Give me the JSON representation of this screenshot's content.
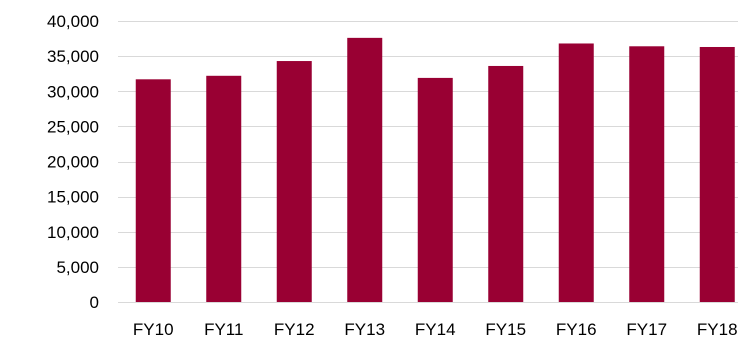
{
  "chart_data": {
    "type": "bar",
    "categories": [
      "FY10",
      "FY11",
      "FY12",
      "FY13",
      "FY14",
      "FY15",
      "FY16",
      "FY17",
      "FY18"
    ],
    "series": [
      {
        "values": [
          31700,
          32200,
          34300,
          37600,
          31900,
          33600,
          36800,
          36400,
          36300
        ],
        "color": "#990033"
      }
    ],
    "title": "",
    "xlabel": "",
    "ylabel": "",
    "ylim": [
      0,
      40000
    ],
    "y_ticks": [
      0,
      5000,
      10000,
      15000,
      20000,
      25000,
      30000,
      35000,
      40000
    ],
    "y_tick_labels": [
      "0",
      "5,000",
      "10,000",
      "15,000",
      "20,000",
      "25,000",
      "30,000",
      "35,000",
      "40,000"
    ],
    "grid": true,
    "legend": "none"
  }
}
